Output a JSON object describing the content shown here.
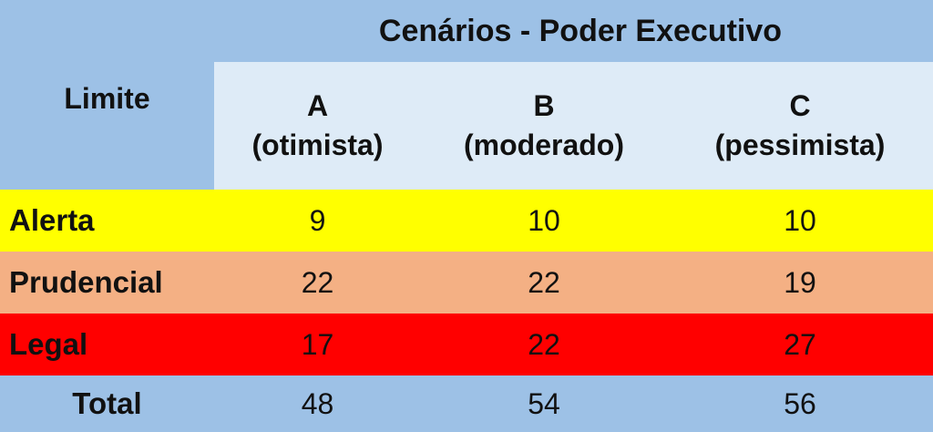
{
  "chart_data": {
    "type": "table",
    "title": "Cenários - Poder Executivo",
    "row_header": "Limite",
    "columns": [
      {
        "letter": "A",
        "label": "(otimista)"
      },
      {
        "letter": "B",
        "label": "(moderado)"
      },
      {
        "letter": "C",
        "label": "(pessimista)"
      }
    ],
    "rows": [
      {
        "label": "Alerta",
        "values": [
          "9",
          "10",
          "10"
        ],
        "color": "#ffff00"
      },
      {
        "label": "Prudencial",
        "values": [
          "22",
          "22",
          "19"
        ],
        "color": "#f4b084"
      },
      {
        "label": "Legal",
        "values": [
          "17",
          "22",
          "27"
        ],
        "color": "#ff0000"
      },
      {
        "label": "Total",
        "values": [
          "48",
          "54",
          "56"
        ],
        "color": "#9dc1e6"
      }
    ],
    "header_color": "#9dc1e6",
    "subheader_color": "#deebf7"
  }
}
